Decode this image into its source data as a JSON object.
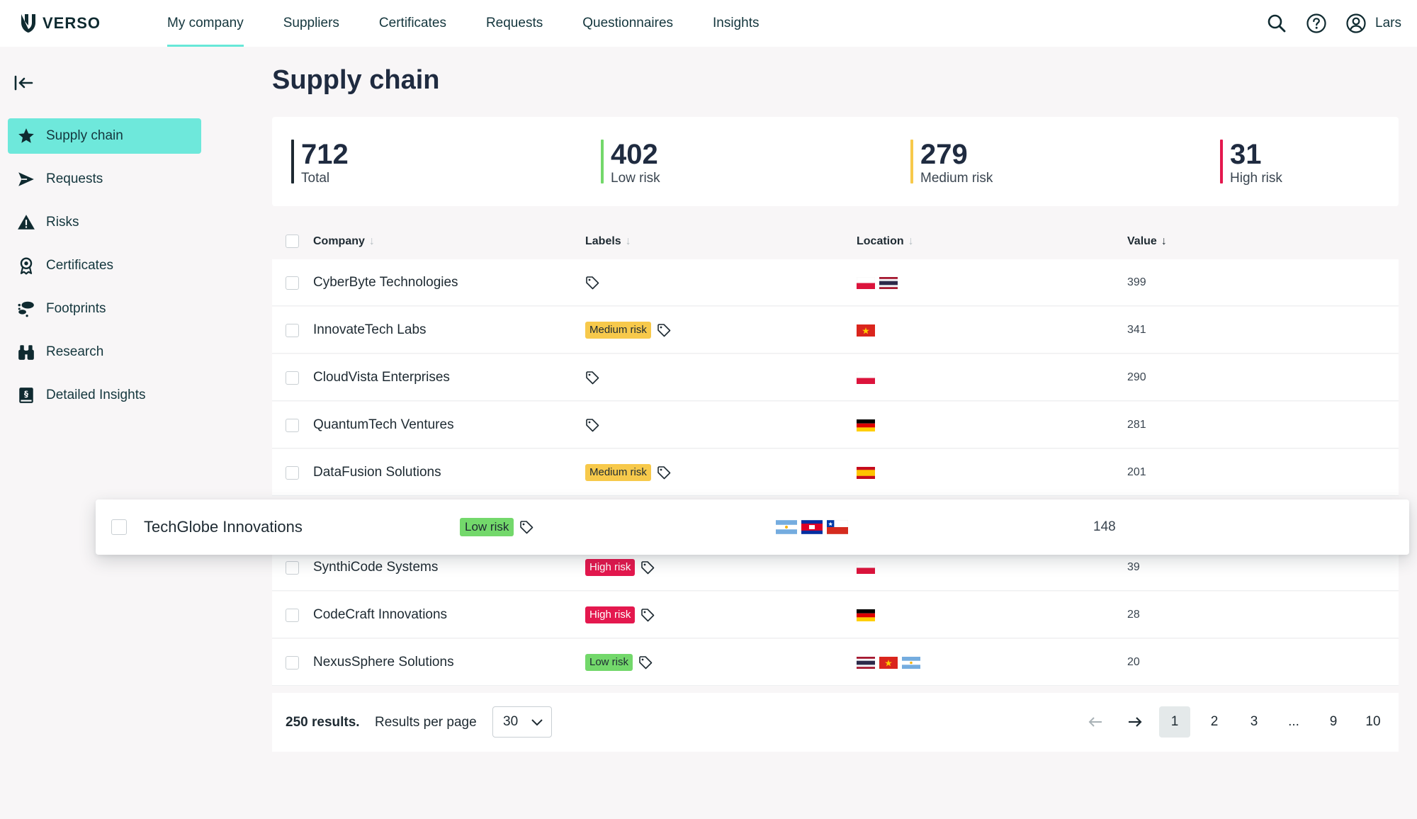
{
  "brand": {
    "name": "VERSO"
  },
  "nav": {
    "items": [
      {
        "label": "My company",
        "active": true
      },
      {
        "label": "Suppliers"
      },
      {
        "label": "Certificates"
      },
      {
        "label": "Requests"
      },
      {
        "label": "Questionnaires"
      },
      {
        "label": "Insights"
      }
    ],
    "user": "Lars"
  },
  "sidebar": {
    "items": [
      {
        "label": "Supply chain",
        "icon": "star-icon",
        "active": true
      },
      {
        "label": "Requests",
        "icon": "send-icon"
      },
      {
        "label": "Risks",
        "icon": "warning-icon"
      },
      {
        "label": "Certificates",
        "icon": "award-icon"
      },
      {
        "label": "Footprints",
        "icon": "footprint-icon"
      },
      {
        "label": "Research",
        "icon": "binoculars-icon"
      },
      {
        "label": "Detailed Insights",
        "icon": "book-icon"
      }
    ]
  },
  "page": {
    "title": "Supply chain"
  },
  "stats": [
    {
      "value": "712",
      "label": "Total",
      "color": "#1e2a32"
    },
    {
      "value": "402",
      "label": "Low risk",
      "color": "#73d86b"
    },
    {
      "value": "279",
      "label": "Medium risk",
      "color": "#f7c94b"
    },
    {
      "value": "31",
      "label": "High risk",
      "color": "#e4184e"
    }
  ],
  "table": {
    "columns": [
      "Company",
      "Labels",
      "Location",
      "Value"
    ],
    "rows": [
      {
        "company": "CyberByte Technologies",
        "label": "",
        "flags": [
          "poland",
          "thailand"
        ],
        "value": "399"
      },
      {
        "company": "InnovateTech Labs",
        "label": "Medium risk",
        "flags": [
          "vietnam"
        ],
        "value": "341"
      },
      {
        "company": "CloudVista Enterprises",
        "label": "",
        "flags": [
          "poland"
        ],
        "value": "290"
      },
      {
        "company": "QuantumTech Ventures",
        "label": "",
        "flags": [
          "germany"
        ],
        "value": "281"
      },
      {
        "company": "DataFusion Solutions",
        "label": "Medium risk",
        "flags": [
          "spain"
        ],
        "value": "201"
      },
      {
        "company": "SynthiCode Systems",
        "label": "High risk",
        "flags": [
          "poland"
        ],
        "value": "39"
      },
      {
        "company": "CodeCraft Innovations",
        "label": "High risk",
        "flags": [
          "germany"
        ],
        "value": "28"
      },
      {
        "company": "NexusSphere Solutions",
        "label": "Low risk",
        "flags": [
          "thailand",
          "vietnam",
          "argentina"
        ],
        "value": "20"
      }
    ],
    "dragged_row": {
      "company": "TechGlobe Innovations",
      "label": "Low risk",
      "flags": [
        "argentina",
        "cambodia",
        "chile"
      ],
      "value": "148"
    }
  },
  "pagination": {
    "results_count": "250 results.",
    "per_page_label": "Results per page",
    "per_page_value": "30",
    "pages": [
      "1",
      "2",
      "3",
      "...",
      "9",
      "10"
    ],
    "current": "1"
  }
}
